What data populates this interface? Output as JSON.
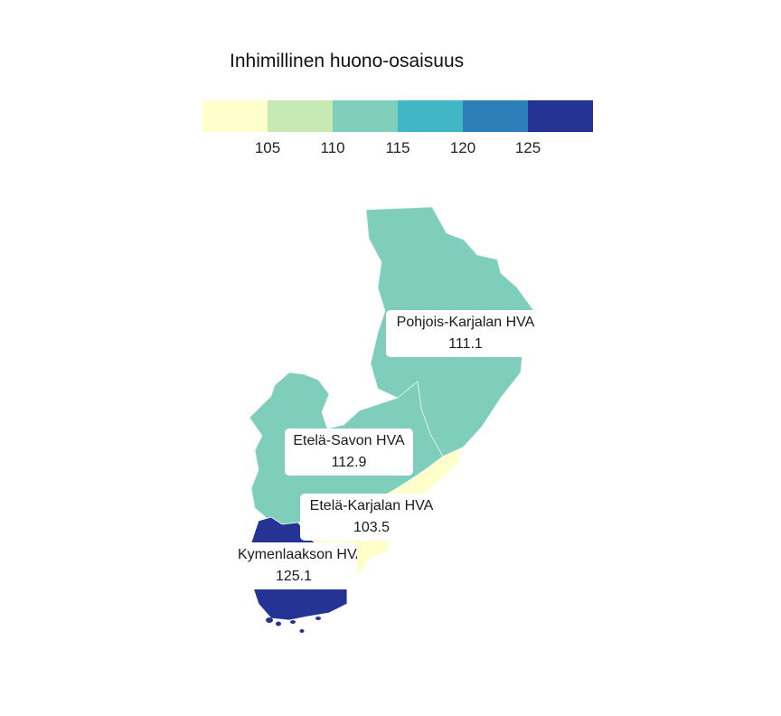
{
  "legend": {
    "title": "Inhimillinen huono-osaisuus",
    "colors": [
      "#ffffcc",
      "#c7e9b4",
      "#7fcdbb",
      "#41b6c4",
      "#2c7fb8",
      "#253494"
    ],
    "ticks": [
      "105",
      "110",
      "115",
      "120",
      "125"
    ]
  },
  "regions": [
    {
      "name": "Pohjois-Karjalan HVA",
      "value": "111.1",
      "color": "#7fcdbb"
    },
    {
      "name": "Etelä-Savon HVA",
      "value": "112.9",
      "color": "#7fcdbb"
    },
    {
      "name": "Etelä-Karjalan HVA",
      "value": "103.5",
      "color": "#ffffcc"
    },
    {
      "name": "Kymenlaakson HVA",
      "value": "125.1",
      "color": "#253494"
    }
  ]
}
